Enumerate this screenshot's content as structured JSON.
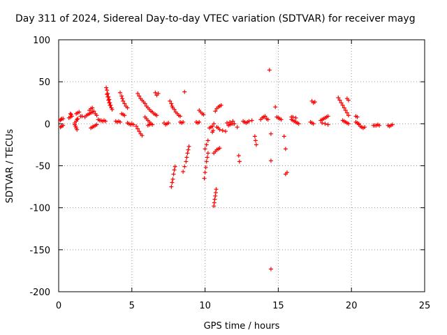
{
  "chart_data": {
    "type": "scatter",
    "title": "Day 311 of 2024, Sidereal Day-to-day VTEC variation (SDTVAR) for receiver mayg",
    "xlabel": "GPS time / hours",
    "ylabel": "SDTVAR / TECUs",
    "xlim": [
      0,
      25
    ],
    "ylim": [
      -200,
      100
    ],
    "xticks": [
      "0",
      "5",
      "10",
      "15",
      "20",
      "25"
    ],
    "yticks": [
      "100",
      "50",
      "0",
      "-50",
      "-100",
      "-150",
      "-200"
    ],
    "grid": true,
    "marker": "+",
    "color": "#ff0000",
    "series": [
      {
        "name": "SDTVAR",
        "points": [
          [
            0.1,
            4
          ],
          [
            0.15,
            5
          ],
          [
            0.2,
            6
          ],
          [
            0.3,
            6
          ],
          [
            0.12,
            -4
          ],
          [
            0.2,
            -3
          ],
          [
            0.3,
            -2
          ],
          [
            0.7,
            7
          ],
          [
            0.8,
            8
          ],
          [
            0.9,
            9
          ],
          [
            0.8,
            12
          ],
          [
            0.85,
            11
          ],
          [
            1.1,
            -1
          ],
          [
            1.15,
            -3
          ],
          [
            1.2,
            -5
          ],
          [
            1.25,
            -7
          ],
          [
            1.1,
            1
          ],
          [
            1.2,
            3
          ],
          [
            1.25,
            5
          ],
          [
            1.3,
            6
          ],
          [
            1.2,
            12
          ],
          [
            1.3,
            13
          ],
          [
            1.4,
            14
          ],
          [
            1.5,
            9
          ],
          [
            1.6,
            9
          ],
          [
            1.8,
            8
          ],
          [
            1.9,
            10
          ],
          [
            2.0,
            11
          ],
          [
            2.1,
            12
          ],
          [
            2.2,
            13
          ],
          [
            2.3,
            14
          ],
          [
            2.1,
            16
          ],
          [
            2.2,
            18
          ],
          [
            2.3,
            19
          ],
          [
            2.4,
            15
          ],
          [
            2.5,
            12
          ],
          [
            2.6,
            10
          ],
          [
            2.2,
            -5
          ],
          [
            2.3,
            -4
          ],
          [
            2.4,
            -3
          ],
          [
            2.5,
            -2
          ],
          [
            2.6,
            -1
          ],
          [
            2.7,
            5
          ],
          [
            2.8,
            4
          ],
          [
            2.9,
            4
          ],
          [
            3.0,
            3
          ],
          [
            3.1,
            4
          ],
          [
            3.2,
            3
          ],
          [
            3.25,
            43
          ],
          [
            3.3,
            40
          ],
          [
            3.35,
            36
          ],
          [
            3.4,
            32
          ],
          [
            3.45,
            29
          ],
          [
            3.5,
            25
          ],
          [
            3.55,
            22
          ],
          [
            3.6,
            19
          ],
          [
            3.65,
            17
          ],
          [
            3.3,
            35
          ],
          [
            3.35,
            32
          ],
          [
            3.4,
            28
          ],
          [
            3.45,
            25
          ],
          [
            3.5,
            22
          ],
          [
            3.9,
            3
          ],
          [
            4.0,
            2
          ],
          [
            4.1,
            3
          ],
          [
            4.2,
            2
          ],
          [
            4.2,
            37
          ],
          [
            4.3,
            33
          ],
          [
            4.35,
            30
          ],
          [
            4.4,
            27
          ],
          [
            4.5,
            24
          ],
          [
            4.6,
            21
          ],
          [
            4.7,
            19
          ],
          [
            4.3,
            12
          ],
          [
            4.4,
            11
          ],
          [
            4.5,
            10
          ],
          [
            4.7,
            1
          ],
          [
            4.8,
            0
          ],
          [
            4.9,
            -1
          ],
          [
            5.0,
            0
          ],
          [
            5.1,
            -1
          ],
          [
            5.3,
            -3
          ],
          [
            5.4,
            -6
          ],
          [
            5.5,
            -9
          ],
          [
            5.6,
            -12
          ],
          [
            5.7,
            -14
          ],
          [
            5.4,
            36
          ],
          [
            5.5,
            33
          ],
          [
            5.6,
            30
          ],
          [
            5.7,
            28
          ],
          [
            5.8,
            26
          ],
          [
            5.9,
            24
          ],
          [
            6.0,
            21
          ],
          [
            6.1,
            19
          ],
          [
            6.2,
            17
          ],
          [
            6.3,
            15
          ],
          [
            6.4,
            14
          ],
          [
            6.5,
            12
          ],
          [
            6.6,
            11
          ],
          [
            6.7,
            10
          ],
          [
            5.9,
            8
          ],
          [
            6.0,
            6
          ],
          [
            6.1,
            4
          ],
          [
            6.2,
            2
          ],
          [
            6.3,
            0
          ],
          [
            6.4,
            -1
          ],
          [
            6.1,
            -2
          ],
          [
            6.2,
            -1
          ],
          [
            6.3,
            0
          ],
          [
            6.6,
            37
          ],
          [
            6.7,
            34
          ],
          [
            6.8,
            36
          ],
          [
            7.2,
            1
          ],
          [
            7.3,
            -1
          ],
          [
            7.4,
            0
          ],
          [
            7.5,
            1
          ],
          [
            7.6,
            27
          ],
          [
            7.7,
            24
          ],
          [
            7.75,
            21
          ],
          [
            7.8,
            19
          ],
          [
            7.9,
            17
          ],
          [
            8.0,
            14
          ],
          [
            8.1,
            12
          ],
          [
            7.7,
            -75
          ],
          [
            7.75,
            -70
          ],
          [
            7.8,
            -66
          ],
          [
            7.85,
            -60
          ],
          [
            7.9,
            -55
          ],
          [
            7.95,
            -51
          ],
          [
            8.2,
            10
          ],
          [
            8.3,
            9
          ],
          [
            8.3,
            2
          ],
          [
            8.4,
            1
          ],
          [
            8.5,
            2
          ],
          [
            8.5,
            -57
          ],
          [
            8.6,
            -51
          ],
          [
            8.7,
            -45
          ],
          [
            8.75,
            -40
          ],
          [
            8.8,
            -35
          ],
          [
            8.85,
            -31
          ],
          [
            8.9,
            -27
          ],
          [
            8.6,
            38
          ],
          [
            9.4,
            2
          ],
          [
            9.5,
            1
          ],
          [
            9.6,
            2
          ],
          [
            9.6,
            16
          ],
          [
            9.7,
            14
          ],
          [
            9.8,
            12
          ],
          [
            9.9,
            11
          ],
          [
            9.95,
            -65
          ],
          [
            10.0,
            -58
          ],
          [
            10.05,
            -52
          ],
          [
            10.1,
            -45
          ],
          [
            10.15,
            -40
          ],
          [
            10.2,
            -35
          ],
          [
            10.0,
            -30
          ],
          [
            10.1,
            -25
          ],
          [
            10.2,
            -20
          ],
          [
            10.3,
            -5
          ],
          [
            10.4,
            -4
          ],
          [
            10.5,
            -3
          ],
          [
            10.5,
            -10
          ],
          [
            10.55,
            -8
          ],
          [
            10.6,
            0
          ],
          [
            10.6,
            -98
          ],
          [
            10.63,
            -94
          ],
          [
            10.66,
            -90
          ],
          [
            10.7,
            -86
          ],
          [
            10.73,
            -82
          ],
          [
            10.76,
            -78
          ],
          [
            10.6,
            -35
          ],
          [
            10.7,
            -33
          ],
          [
            10.8,
            -31
          ],
          [
            10.9,
            -30
          ],
          [
            11.0,
            -29
          ],
          [
            10.7,
            15
          ],
          [
            10.8,
            18
          ],
          [
            10.9,
            20
          ],
          [
            11.0,
            21
          ],
          [
            11.1,
            22
          ],
          [
            10.8,
            -4
          ],
          [
            10.9,
            -5
          ],
          [
            11.0,
            -7
          ],
          [
            11.2,
            -8
          ],
          [
            11.4,
            -9
          ],
          [
            11.6,
            -2
          ],
          [
            11.7,
            -1
          ],
          [
            11.8,
            0
          ],
          [
            11.9,
            0
          ],
          [
            12.0,
            0
          ],
          [
            11.5,
            1
          ],
          [
            11.7,
            2
          ],
          [
            11.9,
            3
          ],
          [
            12.2,
            -4
          ],
          [
            12.3,
            -38
          ],
          [
            12.35,
            -45
          ],
          [
            12.6,
            3
          ],
          [
            12.7,
            2
          ],
          [
            12.8,
            1
          ],
          [
            12.9,
            2
          ],
          [
            13.0,
            3
          ],
          [
            13.2,
            4
          ],
          [
            13.4,
            -15
          ],
          [
            13.45,
            -20
          ],
          [
            13.5,
            -25
          ],
          [
            13.8,
            5
          ],
          [
            13.9,
            7
          ],
          [
            14.0,
            8
          ],
          [
            14.1,
            9
          ],
          [
            14.2,
            6
          ],
          [
            14.3,
            5
          ],
          [
            14.4,
            64
          ],
          [
            14.5,
            -12
          ],
          [
            14.5,
            -44
          ],
          [
            14.5,
            -173
          ],
          [
            14.8,
            20
          ],
          [
            14.9,
            8
          ],
          [
            15.0,
            7
          ],
          [
            15.1,
            6
          ],
          [
            15.2,
            5
          ],
          [
            15.4,
            -15
          ],
          [
            15.5,
            -30
          ],
          [
            15.6,
            -58
          ],
          [
            15.5,
            -60
          ],
          [
            15.9,
            5
          ],
          [
            16.0,
            4
          ],
          [
            16.1,
            3
          ],
          [
            16.2,
            2
          ],
          [
            16.3,
            1
          ],
          [
            16.4,
            0
          ],
          [
            15.9,
            8
          ],
          [
            16.0,
            8
          ],
          [
            16.2,
            7
          ],
          [
            17.3,
            27
          ],
          [
            17.4,
            25
          ],
          [
            17.5,
            26
          ],
          [
            17.2,
            2
          ],
          [
            17.3,
            1
          ],
          [
            17.4,
            0
          ],
          [
            17.9,
            4
          ],
          [
            18.0,
            5
          ],
          [
            18.1,
            6
          ],
          [
            18.2,
            7
          ],
          [
            18.3,
            8
          ],
          [
            18.4,
            9
          ],
          [
            18.0,
            1
          ],
          [
            18.2,
            0
          ],
          [
            18.4,
            -1
          ],
          [
            19.1,
            31
          ],
          [
            19.2,
            28
          ],
          [
            19.3,
            25
          ],
          [
            19.4,
            22
          ],
          [
            19.5,
            19
          ],
          [
            19.6,
            16
          ],
          [
            19.7,
            13
          ],
          [
            19.8,
            10
          ],
          [
            19.7,
            30
          ],
          [
            19.8,
            28
          ],
          [
            19.4,
            4
          ],
          [
            19.5,
            3
          ],
          [
            19.6,
            2
          ],
          [
            19.7,
            1
          ],
          [
            19.8,
            0
          ],
          [
            20.3,
            9
          ],
          [
            20.4,
            8
          ],
          [
            20.5,
            -1
          ],
          [
            20.6,
            -3
          ],
          [
            20.7,
            -4
          ],
          [
            20.8,
            -5
          ],
          [
            20.9,
            -4
          ],
          [
            20.3,
            2
          ],
          [
            20.4,
            1
          ],
          [
            20.5,
            0
          ],
          [
            21.5,
            -2
          ],
          [
            21.6,
            -2
          ],
          [
            21.7,
            -2
          ],
          [
            21.8,
            -1
          ],
          [
            21.9,
            -2
          ],
          [
            22.5,
            -2
          ],
          [
            22.6,
            -3
          ],
          [
            22.7,
            -2
          ],
          [
            22.8,
            -1
          ]
        ]
      }
    ]
  }
}
